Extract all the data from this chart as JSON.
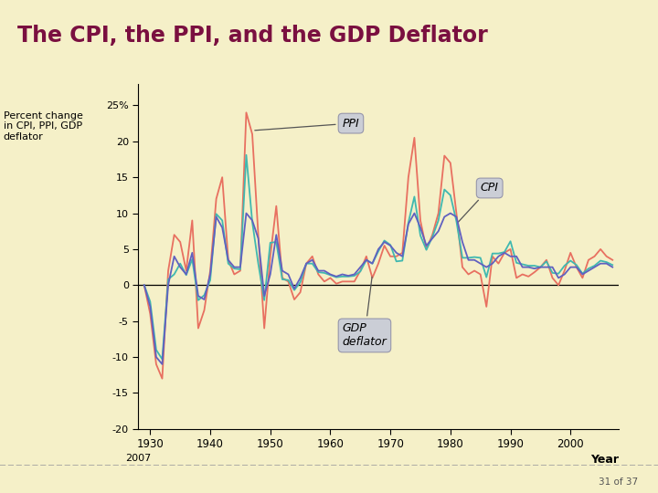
{
  "title": "The CPI, the PPI, and the GDP Deflator",
  "ylabel": "Percent change\nin CPI, PPI, GDP\ndeflator",
  "xlabel": "Year",
  "bg_color": "#f5f0c8",
  "title_color": "#7a1040",
  "title_bar_color": "#7a1040",
  "ylabel_color": "#000000",
  "ylim": [
    -20,
    28
  ],
  "yticks": [
    -20,
    -15,
    -10,
    -5,
    0,
    5,
    10,
    15,
    20,
    25
  ],
  "ytick_labels": [
    "-20",
    "-15",
    "-10",
    "-5",
    "0",
    "5",
    "10",
    "15",
    "20",
    "25%"
  ],
  "xlim": [
    1928,
    2008
  ],
  "xticks": [
    1930,
    1940,
    1950,
    1960,
    1970,
    1980,
    1990,
    2000
  ],
  "footer_text": "31 of 37",
  "ppi_color": "#e87060",
  "cpi_color": "#40b8b0",
  "gdp_color": "#6060c0",
  "annotation_box_color": "#c8ccd8",
  "years": [
    1929,
    1930,
    1931,
    1932,
    1933,
    1934,
    1935,
    1936,
    1937,
    1938,
    1939,
    1940,
    1941,
    1942,
    1943,
    1944,
    1945,
    1946,
    1947,
    1948,
    1949,
    1950,
    1951,
    1952,
    1953,
    1954,
    1955,
    1956,
    1957,
    1958,
    1959,
    1960,
    1961,
    1962,
    1963,
    1964,
    1965,
    1966,
    1967,
    1968,
    1969,
    1970,
    1971,
    1972,
    1973,
    1974,
    1975,
    1976,
    1977,
    1978,
    1979,
    1980,
    1981,
    1982,
    1983,
    1984,
    1985,
    1986,
    1987,
    1988,
    1989,
    1990,
    1991,
    1992,
    1993,
    1994,
    1995,
    1996,
    1997,
    1998,
    1999,
    2000,
    2001,
    2002,
    2003,
    2004,
    2005,
    2006,
    2007
  ],
  "cpi": [
    0.0,
    -2.3,
    -9.0,
    -10.3,
    0.8,
    1.5,
    3.0,
    1.4,
    3.6,
    -2.1,
    -1.4,
    0.7,
    9.9,
    9.0,
    3.0,
    2.3,
    2.2,
    18.1,
    8.8,
    3.0,
    -2.1,
    5.9,
    6.0,
    0.8,
    0.7,
    -0.7,
    0.4,
    3.0,
    3.0,
    1.8,
    1.7,
    1.4,
    1.1,
    1.2,
    1.2,
    1.3,
    1.9,
    3.5,
    3.0,
    4.7,
    6.2,
    5.6,
    3.3,
    3.4,
    8.7,
    12.3,
    6.9,
    4.9,
    6.7,
    9.0,
    13.3,
    12.5,
    8.9,
    3.8,
    3.8,
    3.9,
    3.8,
    1.1,
    4.4,
    4.4,
    4.6,
    6.1,
    3.1,
    2.9,
    2.7,
    2.7,
    2.5,
    3.3,
    1.7,
    1.6,
    2.7,
    3.4,
    2.8,
    1.6,
    2.3,
    2.7,
    3.4,
    3.2,
    2.8
  ],
  "ppi": [
    0.0,
    -4.0,
    -11.0,
    -13.0,
    2.0,
    7.0,
    6.0,
    2.0,
    9.0,
    -6.0,
    -3.5,
    2.0,
    12.0,
    15.0,
    3.5,
    1.5,
    2.0,
    24.0,
    21.0,
    7.0,
    -6.0,
    4.0,
    11.0,
    1.0,
    0.5,
    -2.0,
    -1.0,
    3.0,
    4.0,
    1.5,
    0.5,
    1.0,
    0.2,
    0.5,
    0.5,
    0.5,
    2.0,
    4.0,
    1.0,
    3.0,
    5.5,
    4.0,
    4.0,
    4.5,
    15.0,
    20.5,
    9.0,
    5.0,
    7.0,
    10.0,
    18.0,
    17.0,
    10.0,
    2.5,
    1.5,
    2.0,
    1.5,
    -3.0,
    4.0,
    3.0,
    4.5,
    5.0,
    1.0,
    1.5,
    1.2,
    1.8,
    2.5,
    3.5,
    1.0,
    0.0,
    2.0,
    4.5,
    2.5,
    1.0,
    3.5,
    4.0,
    5.0,
    4.0,
    3.5
  ],
  "gdp": [
    0.0,
    -3.0,
    -10.0,
    -11.0,
    0.0,
    4.0,
    2.5,
    1.5,
    4.5,
    -1.5,
    -2.0,
    1.5,
    9.5,
    8.0,
    3.5,
    2.5,
    2.5,
    10.0,
    9.0,
    6.5,
    -1.5,
    1.5,
    7.0,
    2.0,
    1.5,
    -0.5,
    1.0,
    3.0,
    3.5,
    2.0,
    2.0,
    1.5,
    1.2,
    1.5,
    1.3,
    1.5,
    2.5,
    3.5,
    3.0,
    5.0,
    6.0,
    5.5,
    4.5,
    4.0,
    8.5,
    10.0,
    8.0,
    5.5,
    6.5,
    7.5,
    9.5,
    10.0,
    9.5,
    6.0,
    3.5,
    3.5,
    3.0,
    2.5,
    3.0,
    4.0,
    4.5,
    4.0,
    4.0,
    2.5,
    2.5,
    2.3,
    2.5,
    2.5,
    2.5,
    1.0,
    1.5,
    2.5,
    2.5,
    1.5,
    2.0,
    2.5,
    3.0,
    3.0,
    2.5
  ]
}
